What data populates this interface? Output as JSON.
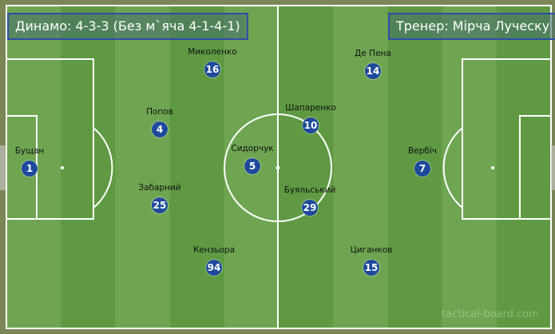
{
  "team_box": {
    "label": "Динамо: 4-3-3 (Без м`яча 4-1-4-1)"
  },
  "coach_box": {
    "label": "Тренер: Мірча Луческу"
  },
  "colors": {
    "pitch_light": "#6fa551",
    "pitch_dark": "#5f9a42",
    "lines": "#ffffff",
    "player": "#1d4a9c",
    "box_border": "#2a4fa8"
  },
  "players": [
    {
      "name": "Бущан",
      "number": "1"
    },
    {
      "name": "Попов",
      "number": "4"
    },
    {
      "name": "Миколенко",
      "number": "16"
    },
    {
      "name": "Забарний",
      "number": "25"
    },
    {
      "name": "Кензьора",
      "number": "94"
    },
    {
      "name": "Сидорчук",
      "number": "5"
    },
    {
      "name": "Шапаренко",
      "number": "10"
    },
    {
      "name": "Буяльський",
      "number": "29"
    },
    {
      "name": "Де Пена",
      "number": "14"
    },
    {
      "name": "Вербіч",
      "number": "7"
    },
    {
      "name": "Циганков",
      "number": "15"
    }
  ],
  "watermark": "tactical-board.com"
}
